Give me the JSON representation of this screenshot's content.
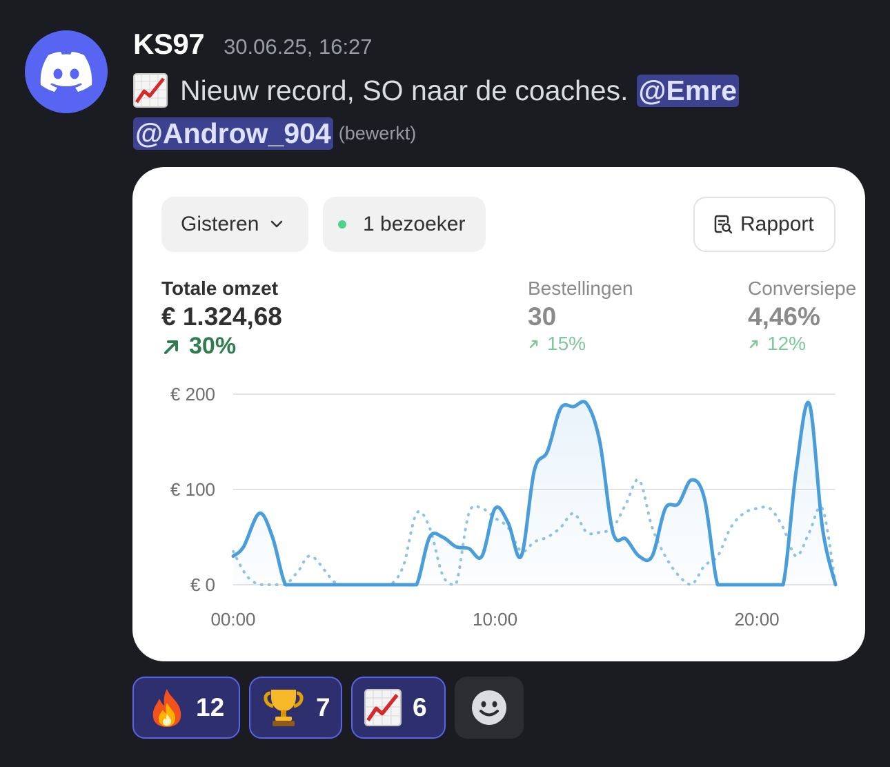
{
  "message": {
    "username": "KS97",
    "timestamp": "30.06.25, 16:27",
    "text": "Nieuw record, SO naar de coaches.",
    "mentions": [
      "@Emre",
      "@Androw_904"
    ],
    "edited_label": "(bewerkt)",
    "colors": {
      "mention_bg": "#3c4290",
      "avatar": "#5865f2",
      "background": "#1b1c22"
    }
  },
  "card": {
    "date_filter": "Gisteren",
    "visitors": "1 bezoeker",
    "report_button": "Rapport",
    "metrics": [
      {
        "label": "Totale omzet",
        "value": "€ 1.324,68",
        "change": "30%"
      },
      {
        "label": "Bestellingen",
        "value": "30",
        "change": "15%"
      },
      {
        "label": "Conversiepe",
        "value": "4,46%",
        "change": "12%"
      }
    ]
  },
  "chart_data": {
    "type": "line",
    "y_ticks": [
      "€ 200",
      "€ 100",
      "€ 0"
    ],
    "x_ticks": [
      "00:00",
      "10:00",
      "20:00"
    ],
    "ylim": [
      0,
      200
    ],
    "xlim": [
      0,
      23
    ],
    "grid": true,
    "colors": {
      "current": "#4a9ddb",
      "comparison": "#8ec3e8"
    },
    "series": [
      {
        "style": "solid",
        "x": [
          0,
          0.4,
          1,
          1.5,
          2,
          2.5,
          3,
          4,
          5,
          6,
          6.5,
          7,
          7.5,
          8,
          8.5,
          9,
          9.5,
          10,
          10.5,
          11,
          11.5,
          12,
          12.5,
          13,
          13.5,
          14,
          14.5,
          15,
          15.5,
          16,
          16.5,
          17,
          17.5,
          18,
          18.5,
          19,
          19.5,
          20,
          20.5,
          21,
          21.5,
          22,
          22.5,
          23
        ],
        "values": [
          30,
          40,
          75,
          50,
          0,
          0,
          0,
          0,
          0,
          0,
          0,
          0,
          50,
          50,
          40,
          38,
          30,
          80,
          65,
          30,
          120,
          140,
          185,
          187,
          190,
          150,
          55,
          48,
          30,
          30,
          80,
          85,
          110,
          90,
          0,
          0,
          0,
          0,
          0,
          0,
          120,
          190,
          60,
          0
        ]
      },
      {
        "style": "dotted",
        "x": [
          0,
          0.5,
          1,
          1.5,
          2,
          2.5,
          3,
          4,
          5,
          5.5,
          6,
          6.5,
          7,
          7.5,
          8,
          8.5,
          9,
          9.5,
          10,
          10.5,
          11,
          11.5,
          12,
          12.5,
          13,
          13.5,
          14,
          14.5,
          15,
          15.5,
          16,
          16.5,
          17,
          17.5,
          18,
          18.5,
          19,
          19.5,
          20,
          20.5,
          21,
          21.5,
          22,
          22.5,
          23
        ],
        "values": [
          35,
          10,
          0,
          0,
          0,
          15,
          30,
          0,
          0,
          0,
          0,
          20,
          75,
          60,
          10,
          0,
          75,
          80,
          70,
          60,
          35,
          45,
          50,
          60,
          75,
          55,
          55,
          60,
          85,
          110,
          60,
          30,
          10,
          0,
          20,
          30,
          60,
          75,
          80,
          80,
          60,
          30,
          55,
          80,
          0
        ]
      }
    ]
  }
}
